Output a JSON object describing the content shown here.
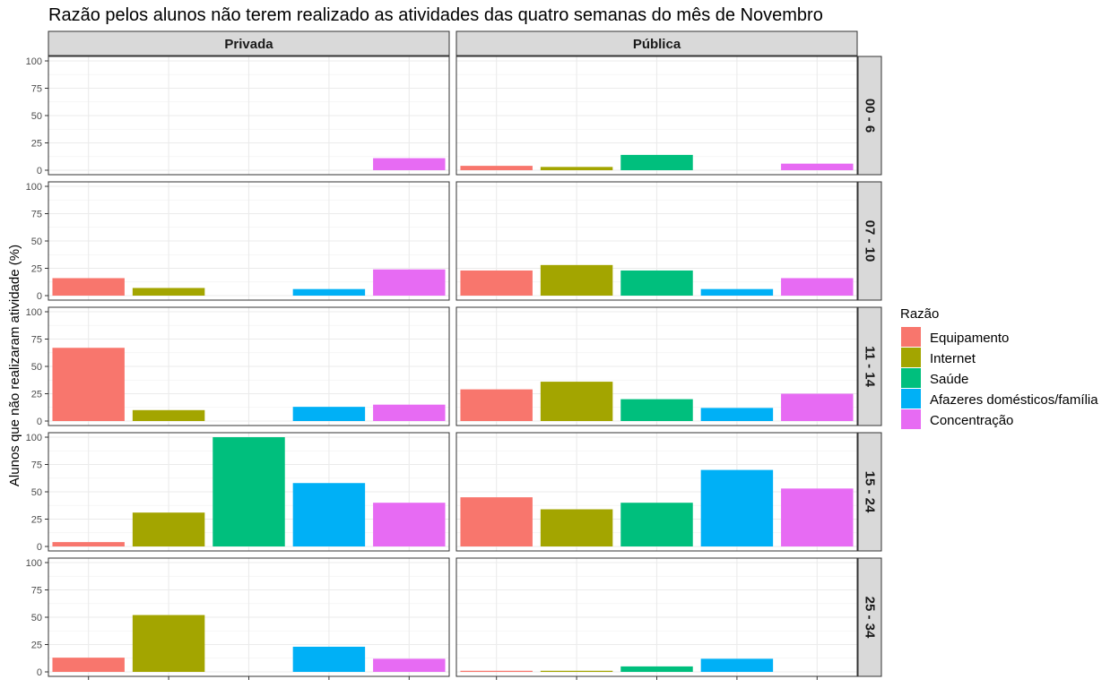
{
  "chart_data": {
    "type": "bar",
    "title": "Razão pelos alunos não terem realizado as atividades das quatro semanas do mês de Novembro",
    "ylabel": "Alunos que não realizaram atividade (%)",
    "xlabel": "",
    "ylim": [
      0,
      100
    ],
    "yticks": [
      "0",
      "25",
      "50",
      "75",
      "100"
    ],
    "columns": [
      "Privada",
      "Pública"
    ],
    "rows": [
      "00 - 6",
      "07 - 10",
      "11 - 14",
      "15 - 24",
      "25 - 34"
    ],
    "categories": [
      "Equipamento",
      "Internet",
      "Saúde",
      "Afazeres domésticos/família",
      "Concentração"
    ],
    "colors": [
      "#F8766D",
      "#A3A500",
      "#00BF7D",
      "#00B0F6",
      "#E76BF3"
    ],
    "legend": {
      "title": "Razão",
      "position": "right"
    },
    "grid": true,
    "panels": [
      {
        "column": "Privada",
        "row": "00 - 6",
        "values": [
          null,
          null,
          null,
          null,
          11
        ]
      },
      {
        "column": "Pública",
        "row": "00 - 6",
        "values": [
          4,
          3,
          14,
          null,
          6
        ]
      },
      {
        "column": "Privada",
        "row": "07 - 10",
        "values": [
          16,
          7,
          null,
          6,
          24
        ]
      },
      {
        "column": "Pública",
        "row": "07 - 10",
        "values": [
          23,
          28,
          23,
          6,
          16
        ]
      },
      {
        "column": "Privada",
        "row": "11 - 14",
        "values": [
          67,
          10,
          null,
          13,
          15
        ]
      },
      {
        "column": "Pública",
        "row": "11 - 14",
        "values": [
          29,
          36,
          20,
          12,
          25
        ]
      },
      {
        "column": "Privada",
        "row": "15 - 24",
        "values": [
          4,
          31,
          100,
          58,
          40
        ]
      },
      {
        "column": "Pública",
        "row": "15 - 24",
        "values": [
          45,
          34,
          40,
          70,
          53
        ]
      },
      {
        "column": "Privada",
        "row": "25 - 34",
        "values": [
          13,
          52,
          null,
          23,
          12
        ]
      },
      {
        "column": "Pública",
        "row": "25 - 34",
        "values": [
          1,
          1,
          5,
          12,
          null
        ]
      }
    ]
  }
}
